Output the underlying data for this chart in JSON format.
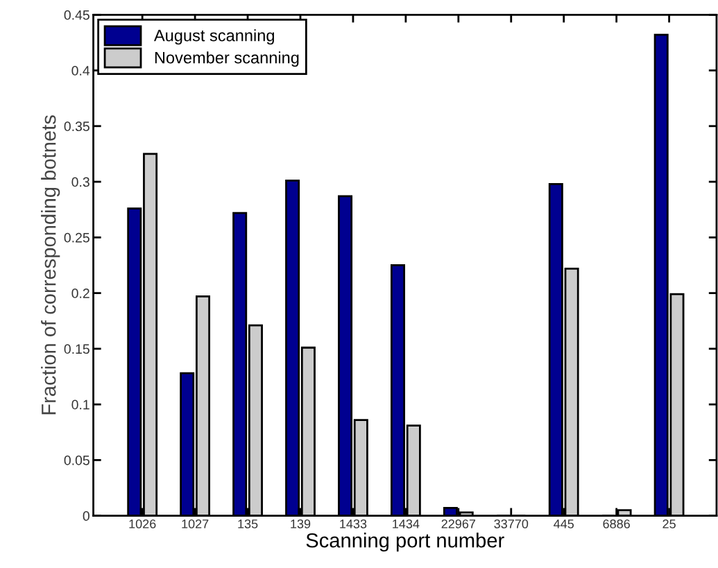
{
  "chart_data": {
    "type": "bar",
    "xlabel": "Scanning port number",
    "ylabel": "Fraction of corresponding botnets",
    "categories": [
      "1026",
      "1027",
      "135",
      "139",
      "1433",
      "1434",
      "22967",
      "33770",
      "445",
      "6886",
      "25"
    ],
    "series": [
      {
        "name": "August scanning",
        "color": "#000090",
        "values": [
          0.276,
          0.128,
          0.272,
          0.301,
          0.287,
          0.225,
          0.007,
          0,
          0.298,
          0,
          0.432
        ]
      },
      {
        "name": "November scanning",
        "color": "#cccccc",
        "values": [
          0.325,
          0.197,
          0.171,
          0.151,
          0.086,
          0.081,
          0.003,
          0,
          0.222,
          0.005,
          0.199
        ]
      }
    ],
    "ylim": [
      0,
      0.45
    ],
    "yticks": [
      0,
      0.05,
      0.1,
      0.15,
      0.2,
      0.25,
      0.3,
      0.35,
      0.4,
      0.45
    ],
    "legend": "top left",
    "grid": false
  }
}
